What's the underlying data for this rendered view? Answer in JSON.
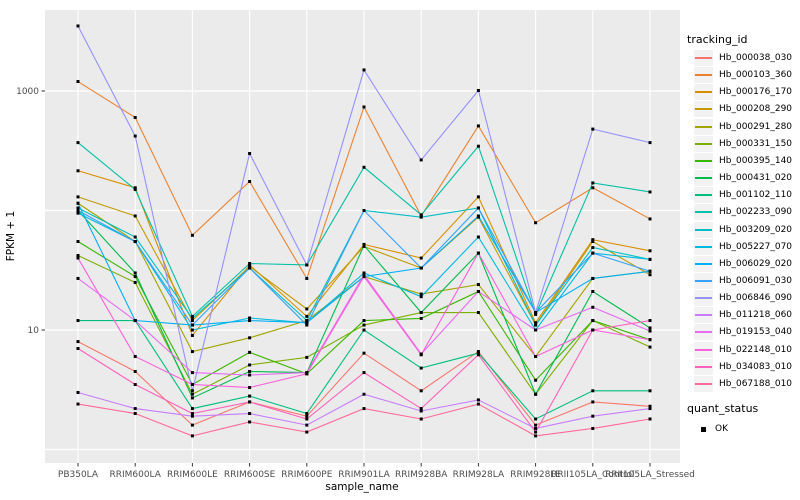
{
  "figure": {
    "y_axis_title": "FPKM + 1",
    "x_axis_title": "sample_name",
    "legend": {
      "tracking_title": "tracking_id",
      "quant_title": "quant_status",
      "quant_entries": [
        {
          "label": "OK"
        }
      ]
    },
    "colors": {
      "panel_bg": "#EBEBEB",
      "grid": "#FFFFFF",
      "tick_label": "#4D4D4D",
      "tick_mark": "#333333",
      "point": "#000000",
      "legend_key_bg": "#F2F2F2"
    }
  },
  "chart_data": {
    "type": "line",
    "title": "",
    "xlabel": "sample_name",
    "ylabel": "FPKM + 1",
    "yscale": "log10",
    "ylim": [
      0.8,
      4800
    ],
    "y_tick_values": [
      1000,
      10
    ],
    "y_tick_labels": [
      "1000",
      "10"
    ],
    "y_gridline_values": [
      1,
      10,
      100,
      1000
    ],
    "grid": "major",
    "legend_position": "right",
    "point_shape": "small-black-square",
    "quant_status": "OK",
    "categories": [
      "PB350LA",
      "RRIM600LA",
      "RRIM600LE",
      "RRIM600SE",
      "RRIM600PE",
      "RRIM901LA",
      "RRIM928BA",
      "RRIM928LA",
      "RRIM928LE",
      "RRII105LA_Control",
      "RRII105LA_Stressed"
    ],
    "series": [
      {
        "name": "Hb_000038_030",
        "color": "#F8766D",
        "values": [
          8,
          4.5,
          1.6,
          2.5,
          1.9,
          6.4,
          3.1,
          6.6,
          1.6,
          2.5,
          2.3
        ]
      },
      {
        "name": "Hb_000103_360",
        "color": "#EA8331",
        "values": [
          1200,
          600,
          62,
          175,
          27,
          735,
          90,
          510,
          79,
          155,
          85
        ]
      },
      {
        "name": "Hb_000176_170",
        "color": "#D89000",
        "values": [
          215,
          155,
          9,
          35,
          13,
          52,
          40,
          130,
          11.5,
          57,
          46
        ]
      },
      {
        "name": "Hb_000208_290",
        "color": "#C09B00",
        "values": [
          130,
          90,
          12,
          34,
          15,
          50,
          33,
          88,
          11,
          55,
          29
        ]
      },
      {
        "name": "Hb_000291_280",
        "color": "#A3A500",
        "values": [
          115,
          55,
          6.6,
          8.6,
          12,
          28,
          20,
          24,
          6,
          27,
          31
        ]
      },
      {
        "name": "Hb_000331_150",
        "color": "#7CAE00",
        "values": [
          42,
          25,
          2.9,
          5.1,
          5.9,
          11,
          14,
          14,
          2.9,
          12,
          7.2
        ]
      },
      {
        "name": "Hb_000395_140",
        "color": "#39B600",
        "values": [
          55,
          28,
          3.5,
          6.5,
          4.3,
          12,
          12.5,
          21,
          3.8,
          12,
          8.3
        ]
      },
      {
        "name": "Hb_000431_020",
        "color": "#00BB4E",
        "values": [
          100,
          30,
          2.7,
          4.5,
          4.4,
          51,
          14,
          44,
          2.9,
          21,
          10.4
        ]
      },
      {
        "name": "Hb_001102_110",
        "color": "#00BF7D",
        "values": [
          12,
          12,
          2.2,
          2.8,
          2.0,
          10,
          4.8,
          6.4,
          1.8,
          3.1,
          3.1
        ]
      },
      {
        "name": "Hb_002233_090",
        "color": "#00C1A3",
        "values": [
          370,
          150,
          13,
          36,
          35,
          230,
          92,
          345,
          13.5,
          170,
          143
        ]
      },
      {
        "name": "Hb_003209_020",
        "color": "#00BFC4",
        "values": [
          105,
          60,
          12.5,
          33,
          12,
          100,
          88,
          105,
          11,
          49,
          39
        ]
      },
      {
        "name": "Hb_005227_070",
        "color": "#00BAE0",
        "values": [
          95,
          55,
          10,
          12.6,
          11.5,
          30,
          19,
          60,
          10,
          44,
          39
        ]
      },
      {
        "name": "Hb_006029_020",
        "color": "#00B0F6",
        "values": [
          115,
          12,
          11,
          12,
          11.5,
          28,
          33,
          90,
          14,
          27,
          31
        ]
      },
      {
        "name": "Hb_006091_030",
        "color": "#35A2FF",
        "values": [
          100,
          55,
          11,
          33,
          11,
          100,
          33,
          105,
          14,
          44,
          31
        ]
      },
      {
        "name": "Hb_006846_090",
        "color": "#9590FF",
        "values": [
          3500,
          420,
          3.1,
          300,
          35,
          1500,
          265,
          1010,
          14,
          480,
          370
        ]
      },
      {
        "name": "Hb_011218_060",
        "color": "#C77CFF",
        "values": [
          3,
          2.2,
          1.9,
          2.0,
          1.6,
          2.9,
          2.1,
          2.6,
          1.5,
          1.9,
          2.2
        ]
      },
      {
        "name": "Hb_019153_040",
        "color": "#E76BF3",
        "values": [
          27,
          12,
          4.4,
          4.2,
          4.4,
          29,
          6.3,
          21,
          10,
          15.5,
          9.8
        ]
      },
      {
        "name": "Hb_022148_010",
        "color": "#FA62DB",
        "values": [
          40,
          6,
          3.5,
          3.3,
          4.3,
          28,
          6.2,
          44,
          6,
          10,
          8.3
        ]
      },
      {
        "name": "Hb_034083_010",
        "color": "#FF62BC",
        "values": [
          7,
          3.5,
          2.0,
          2.5,
          1.8,
          4.4,
          2.2,
          6.2,
          1.4,
          10,
          12
        ]
      },
      {
        "name": "Hb_067188_010",
        "color": "#FF6A98",
        "values": [
          2.4,
          2.0,
          1.3,
          1.7,
          1.4,
          2.2,
          1.8,
          2.4,
          1.3,
          1.5,
          1.8
        ]
      }
    ]
  }
}
